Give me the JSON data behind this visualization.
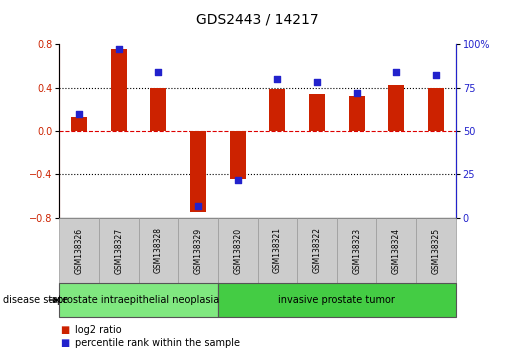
{
  "title": "GDS2443 / 14217",
  "samples": [
    "GSM138326",
    "GSM138327",
    "GSM138328",
    "GSM138329",
    "GSM138320",
    "GSM138321",
    "GSM138322",
    "GSM138323",
    "GSM138324",
    "GSM138325"
  ],
  "log2_ratio": [
    0.13,
    0.76,
    0.4,
    -0.75,
    -0.44,
    0.39,
    0.34,
    0.32,
    0.42,
    0.4
  ],
  "percentile_rank": [
    60,
    97,
    84,
    7,
    22,
    80,
    78,
    72,
    84,
    82
  ],
  "ylim_left": [
    -0.8,
    0.8
  ],
  "ylim_right": [
    0,
    100
  ],
  "yticks_left": [
    -0.8,
    -0.4,
    0.0,
    0.4,
    0.8
  ],
  "yticks_right": [
    0,
    25,
    50,
    75,
    100
  ],
  "ytick_labels_right": [
    "0",
    "25",
    "50",
    "75",
    "100%"
  ],
  "groups": [
    {
      "label": "prostate intraepithelial neoplasia",
      "start": 0,
      "end": 4,
      "color": "#80E880"
    },
    {
      "label": "invasive prostate tumor",
      "start": 4,
      "end": 10,
      "color": "#44CC44"
    }
  ],
  "disease_state_label": "disease state",
  "bar_color_red": "#CC2200",
  "bar_color_blue": "#2222CC",
  "zero_line_color": "#DD0000",
  "dotted_line_color": "#000000",
  "background_color": "#FFFFFF",
  "legend_red_label": "log2 ratio",
  "legend_blue_label": "percentile rank within the sample",
  "bar_width": 0.4,
  "title_fontsize": 10,
  "tick_fontsize": 7,
  "sample_fontsize": 5.5,
  "group_fontsize": 7,
  "legend_fontsize": 7,
  "disease_state_fontsize": 7
}
